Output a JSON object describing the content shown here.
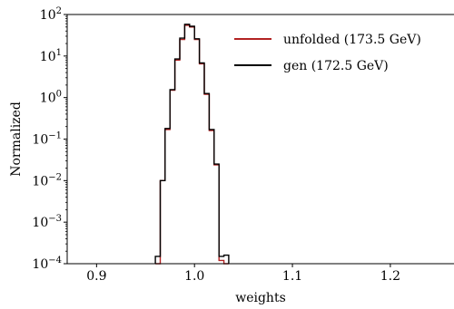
{
  "chart_data": {
    "type": "line",
    "xlabel": "weights",
    "ylabel": "Normalized",
    "xlim": [
      0.87,
      1.265
    ],
    "ylim": [
      0.0001,
      100
    ],
    "yscale": "log",
    "xticks": [
      0.9,
      1.0,
      1.1,
      1.2
    ],
    "xtick_labels": [
      "0.9",
      "1.0",
      "1.1",
      "1.2"
    ],
    "yticks": [
      0.0001,
      0.001,
      0.01,
      0.1,
      1,
      10,
      100
    ],
    "ytick_labels": [
      {
        "base": "10",
        "exp": "−4"
      },
      {
        "base": "10",
        "exp": "−3"
      },
      {
        "base": "10",
        "exp": "−2"
      },
      {
        "base": "10",
        "exp": "−1"
      },
      {
        "base": "10",
        "exp": "0"
      },
      {
        "base": "10",
        "exp": "1"
      },
      {
        "base": "10",
        "exp": "2"
      }
    ],
    "legend_position": "top-right",
    "bin_edges": [
      0.96,
      0.965,
      0.97,
      0.975,
      0.98,
      0.985,
      0.99,
      0.995,
      1.0,
      1.005,
      1.01,
      1.015,
      1.02,
      1.025,
      1.03,
      1.035
    ],
    "series": [
      {
        "name": "unfolded (173.5 GeV)",
        "color": "#b22222",
        "values": [
          0.0001,
          0.01,
          0.17,
          1.5,
          8.0,
          25,
          55,
          50,
          25,
          6.5,
          1.2,
          0.16,
          0.024,
          0.00012,
          0.0001
        ]
      },
      {
        "name": "gen (172.5 GeV)",
        "color": "#000000",
        "values": [
          0.00015,
          0.01,
          0.18,
          1.55,
          8.5,
          27,
          58,
          52,
          26,
          6.8,
          1.25,
          0.17,
          0.025,
          0.00015,
          0.00016
        ]
      }
    ]
  }
}
